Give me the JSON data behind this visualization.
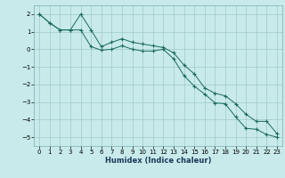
{
  "xlabel": "Humidex (Indice chaleur)",
  "bg_color": "#c8eaea",
  "grid_color": "#a0c8c8",
  "line_color": "#1a6b5a",
  "xlim": [
    -0.5,
    23.5
  ],
  "ylim": [
    -5.5,
    2.5
  ],
  "xticks": [
    0,
    1,
    2,
    3,
    4,
    5,
    6,
    7,
    8,
    9,
    10,
    11,
    12,
    13,
    14,
    15,
    16,
    17,
    18,
    19,
    20,
    21,
    22,
    23
  ],
  "yticks": [
    -5,
    -4,
    -3,
    -2,
    -1,
    0,
    1,
    2
  ],
  "series1_x": [
    0,
    1,
    2,
    3,
    4,
    5,
    6,
    7,
    8,
    9,
    10,
    11,
    12,
    13,
    14,
    15,
    16,
    17,
    18,
    19,
    20,
    21,
    22,
    23
  ],
  "series1_y": [
    2.0,
    1.5,
    1.1,
    1.1,
    2.0,
    1.1,
    0.15,
    0.4,
    0.6,
    0.4,
    0.3,
    0.2,
    0.1,
    -0.2,
    -0.9,
    -1.4,
    -2.2,
    -2.5,
    -2.65,
    -3.1,
    -3.7,
    -4.1,
    -4.1,
    -4.8
  ],
  "series2_x": [
    0,
    1,
    2,
    3,
    4,
    5,
    6,
    7,
    8,
    9,
    10,
    11,
    12,
    13,
    14,
    15,
    16,
    17,
    18,
    19,
    20,
    21,
    22,
    23
  ],
  "series2_y": [
    2.0,
    1.5,
    1.1,
    1.1,
    1.1,
    0.15,
    -0.05,
    0.0,
    0.2,
    0.0,
    -0.1,
    -0.1,
    0.0,
    -0.55,
    -1.5,
    -2.1,
    -2.55,
    -3.05,
    -3.1,
    -3.85,
    -4.5,
    -4.55,
    -4.85,
    -5.0
  ],
  "marker": "+"
}
